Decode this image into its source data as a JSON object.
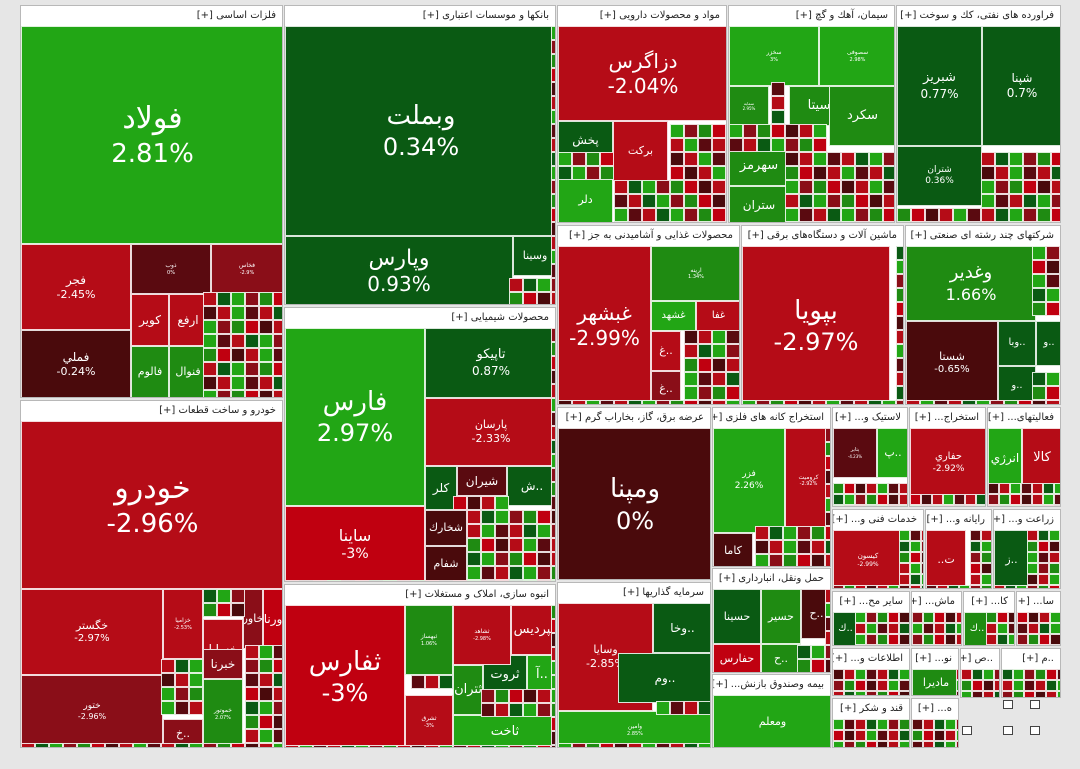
{
  "colors": {
    "strong_down": "#c00010",
    "down": "#b50c17",
    "mid_down": "#8a0e18",
    "dark_red": "#5a0a10",
    "deep_red": "#4a0a0c",
    "strong_up": "#22a615",
    "up": "#1f8b12",
    "dark_green": "#0a5a13",
    "deep_green": "#0b4f0f"
  },
  "chart_data": {
    "type": "treemap",
    "title": "",
    "metric": "daily price change (%)",
    "sectors": [
      {
        "name": "فلزات اساسی [+]",
        "tiles": [
          {
            "symbol": "فولاد",
            "change": "2.81%"
          },
          {
            "symbol": "فجر",
            "change": "-2.45%"
          },
          {
            "symbol": "فملي",
            "change": "-0.24%"
          },
          {
            "symbol": "ذوب",
            "change": "0%"
          },
          {
            "symbol": "فخاس",
            "change": "-2.9%"
          },
          {
            "symbol": "كوير",
            "change": ""
          },
          {
            "symbol": "ارفع",
            "change": ""
          },
          {
            "symbol": "فالوم",
            "change": ""
          },
          {
            "symbol": "فنوال",
            "change": ""
          }
        ]
      },
      {
        "name": "خودرو و ساخت قطعات [+]",
        "tiles": [
          {
            "symbol": "خودرو",
            "change": "-2.96%"
          },
          {
            "symbol": "خگستر",
            "change": "-2.97%"
          },
          {
            "symbol": "ختور",
            "change": "-2.96%"
          },
          {
            "symbol": "خزامیا",
            "change": "-2.53%"
          },
          {
            "symbol": "خساپا",
            "change": ""
          },
          {
            "symbol": "خاور",
            "change": ""
          },
          {
            "symbol": "ورنا",
            "change": ""
          },
          {
            "symbol": "خموتور",
            "change": "2.07%"
          },
          {
            "symbol": "خبرنا",
            "change": ""
          },
          {
            "symbol": "خ..",
            "change": ""
          }
        ]
      },
      {
        "name": "بانكها و موسسات اعتباری [+]",
        "tiles": [
          {
            "symbol": "وبملت",
            "change": "0.34%"
          },
          {
            "symbol": "وپارس",
            "change": "0.93%"
          },
          {
            "symbol": "وسینا",
            "change": ""
          }
        ]
      },
      {
        "name": "محصولات شیمیایی [+]",
        "tiles": [
          {
            "symbol": "فارس",
            "change": "2.97%"
          },
          {
            "symbol": "تاپیکو",
            "change": "0.87%"
          },
          {
            "symbol": "پارسان",
            "change": "-2.33%"
          },
          {
            "symbol": "ساینا",
            "change": "-3%"
          },
          {
            "symbol": "كلر",
            "change": ""
          },
          {
            "symbol": "شیران",
            "change": ""
          },
          {
            "symbol": "ش..",
            "change": ""
          },
          {
            "symbol": "شخارك",
            "change": ""
          },
          {
            "symbol": "شفام",
            "change": ""
          }
        ]
      },
      {
        "name": "انبوه سازی، املاک و مستغلات [+]",
        "tiles": [
          {
            "symbol": "ثفارس",
            "change": "-3%"
          },
          {
            "symbol": "ثپردیس",
            "change": ""
          },
          {
            "symbol": "ثروت",
            "change": ""
          },
          {
            "symbol": "ثتران",
            "change": ""
          },
          {
            "symbol": "ثاخت",
            "change": ""
          },
          {
            "symbol": "آ..",
            "change": ""
          },
          {
            "symbol": "ثبهساز",
            "change": "1.06%"
          },
          {
            "symbol": "ثشاهد",
            "change": "-2.98%"
          },
          {
            "symbol": "ثشرق",
            "change": "-3%"
          }
        ]
      },
      {
        "name": "مواد و محصولات دارویی [+]",
        "tiles": [
          {
            "symbol": "دزاگرس",
            "change": "-2.04%"
          },
          {
            "symbol": "پخش",
            "change": ""
          },
          {
            "symbol": "بركت",
            "change": ""
          },
          {
            "symbol": "دلر",
            "change": ""
          }
        ]
      },
      {
        "name": "محصولات غذایی و آشامیدنی به جز [+]",
        "tiles": [
          {
            "symbol": "غبشهر",
            "change": "-2.99%"
          },
          {
            "symbol": "ارینه",
            "change": "1.34%"
          },
          {
            "symbol": "غشهد",
            "change": ""
          },
          {
            "symbol": "غفا",
            "change": ""
          },
          {
            "symbol": "غ..",
            "change": ""
          },
          {
            "symbol": "غ..",
            "change": ""
          }
        ]
      },
      {
        "name": "عرضه برق، گاز، بخاراب گرم [+]",
        "tiles": [
          {
            "symbol": "ومپنا",
            "change": "0%"
          }
        ]
      },
      {
        "name": "سرمایه گذاریها [+]",
        "tiles": [
          {
            "symbol": "وسایا",
            "change": "-2.85%"
          },
          {
            "symbol": "وخا..",
            "change": ""
          },
          {
            "symbol": "واتي",
            "change": ""
          },
          {
            "symbol": "وم..",
            "change": ""
          },
          {
            "symbol": "وامین",
            "change": "2.85%"
          }
        ]
      },
      {
        "name": "سیمان، آهك و گچ [+]",
        "tiles": [
          {
            "symbol": "سخزر",
            "change": "3%"
          },
          {
            "symbol": "سصوفی",
            "change": "2.98%"
          },
          {
            "symbol": "سمایه",
            "change": "2.95%"
          },
          {
            "symbol": "سیتا",
            "change": ""
          },
          {
            "symbol": "سكرد",
            "change": ""
          },
          {
            "symbol": "سهرمز",
            "change": ""
          },
          {
            "symbol": "ستران",
            "change": ""
          }
        ]
      },
      {
        "name": "فراورده های نفتی، كك و سوخت [+]",
        "tiles": [
          {
            "symbol": "شبریز",
            "change": "0.77%"
          },
          {
            "symbol": "شپنا",
            "change": "0.7%"
          },
          {
            "symbol": "شتران",
            "change": "0.36%"
          }
        ]
      },
      {
        "name": "ماشین آلات و دستگاه‌های برقی [+]",
        "tiles": [
          {
            "symbol": "بپویا",
            "change": "-2.97%"
          }
        ]
      },
      {
        "name": "شركتهای چند رشته ای صنعتی [+]",
        "tiles": [
          {
            "symbol": "وغدیر",
            "change": "1.66%"
          },
          {
            "symbol": "شستا",
            "change": "-0.65%"
          },
          {
            "symbol": "وبا..",
            "change": ""
          },
          {
            "symbol": "و..",
            "change": ""
          },
          {
            "symbol": "و..",
            "change": ""
          }
        ]
      },
      {
        "name": "استخراج كانه های فلزی [+]",
        "tiles": [
          {
            "symbol": "فزر",
            "change": "2.26%"
          },
          {
            "symbol": "كروميت",
            "change": "-2.92%"
          },
          {
            "symbol": "كاما",
            "change": ""
          }
        ]
      },
      {
        "name": "لاستیک و... [+]",
        "tiles": [
          {
            "symbol": "پتایر",
            "change": "-4.23%"
          },
          {
            "symbol": "پ..",
            "change": ""
          }
        ]
      },
      {
        "name": "استخراج... [+]",
        "tiles": [
          {
            "symbol": "حفاري",
            "change": "-2.92%"
          }
        ]
      },
      {
        "name": "فعالیتهای... [+]",
        "tiles": [
          {
            "symbol": "انرژي",
            "change": ""
          },
          {
            "symbol": "كالا",
            "change": ""
          }
        ]
      },
      {
        "name": "حمل ونقل، انبارداری [+]",
        "tiles": [
          {
            "symbol": "حسینا",
            "change": ""
          },
          {
            "symbol": "حسير",
            "change": ""
          },
          {
            "symbol": "ح..",
            "change": ""
          },
          {
            "symbol": "حفارس",
            "change": ""
          },
          {
            "symbol": "ح..",
            "change": ""
          }
        ]
      },
      {
        "name": "خدمات فنی و... [+]",
        "tiles": [
          {
            "symbol": "كيسون",
            "change": "-2.99%"
          }
        ]
      },
      {
        "name": "رایانه و... [+]",
        "tiles": [
          {
            "symbol": "..ت",
            "change": ""
          }
        ]
      },
      {
        "name": "زراعت و... [+]",
        "tiles": [
          {
            "symbol": "ز..",
            "change": ""
          }
        ]
      },
      {
        "name": "بیمه وصندوق بازنش... [+]",
        "tiles": [
          {
            "symbol": "ومعلم",
            "change": ""
          }
        ]
      },
      {
        "name": "سایر مح... [+]",
        "tiles": [
          {
            "symbol": "ك..",
            "change": ""
          }
        ]
      },
      {
        "name": "ماش... [+]",
        "tiles": []
      },
      {
        "name": "كا... [+]",
        "tiles": [
          {
            "symbol": "ك..",
            "change": ""
          }
        ]
      },
      {
        "name": "سا... [+]",
        "tiles": []
      },
      {
        "name": "اطلاعات و... [+]",
        "tiles": []
      },
      {
        "name": "نو... [+]",
        "tiles": [
          {
            "symbol": "مادیرا",
            "change": ""
          }
        ]
      },
      {
        "name": "قند و شكر [+]",
        "tiles": []
      },
      {
        "name": "ه... [+]",
        "tiles": []
      },
      {
        "name": "..ص [+]",
        "tiles": []
      },
      {
        "name": "..م [+]",
        "tiles": []
      }
    ]
  }
}
